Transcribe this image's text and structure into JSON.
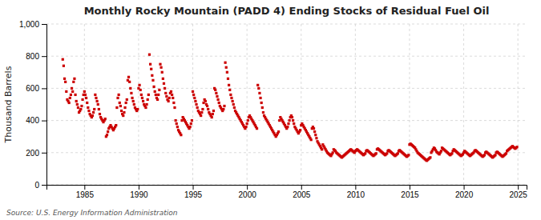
{
  "chart_data": {
    "type": "scatter",
    "title": "Monthly Rocky Mountain (PADD 4) Ending Stocks of Residual Fuel Oil",
    "ylabel": "Thousand Barrels",
    "annotations": [
      "Source: U.S. Energy Information Administration"
    ],
    "color": "#cc0000",
    "marker": "square",
    "grid": true,
    "xlim": [
      1981.5,
      2025.8
    ],
    "xticks": [
      1985,
      1990,
      1995,
      2000,
      2005,
      2010,
      2015,
      2020,
      2025
    ],
    "ylim": [
      0,
      1000
    ],
    "yticks": [
      0,
      200,
      400,
      600,
      800,
      {
        "value": 1000,
        "label": "1,000"
      }
    ],
    "x": [
      1983.0,
      1983.083,
      1983.167,
      1983.25,
      1983.333,
      1983.417,
      1983.5,
      1983.583,
      1983.667,
      1983.75,
      1983.833,
      1983.917,
      1984.0,
      1984.083,
      1984.167,
      1984.25,
      1984.333,
      1984.417,
      1984.5,
      1984.583,
      1984.667,
      1984.75,
      1984.833,
      1984.917,
      1985.0,
      1985.083,
      1985.167,
      1985.25,
      1985.333,
      1985.417,
      1985.5,
      1985.583,
      1985.667,
      1985.75,
      1985.833,
      1985.917,
      1986.0,
      1986.083,
      1986.167,
      1986.25,
      1986.333,
      1986.417,
      1986.5,
      1986.583,
      1986.667,
      1986.75,
      1986.833,
      1986.917,
      1987.0,
      1987.083,
      1987.167,
      1987.25,
      1987.333,
      1987.417,
      1987.5,
      1987.583,
      1987.667,
      1987.75,
      1987.833,
      1987.917,
      1988.0,
      1988.083,
      1988.167,
      1988.25,
      1988.333,
      1988.417,
      1988.5,
      1988.583,
      1988.667,
      1988.75,
      1988.833,
      1988.917,
      1989.0,
      1989.083,
      1989.167,
      1989.25,
      1989.333,
      1989.417,
      1989.5,
      1989.583,
      1989.667,
      1989.75,
      1989.833,
      1989.917,
      1990.0,
      1990.083,
      1990.167,
      1990.25,
      1990.333,
      1990.417,
      1990.5,
      1990.583,
      1990.667,
      1990.75,
      1990.833,
      1990.917,
      1991.0,
      1991.083,
      1991.167,
      1991.25,
      1991.333,
      1991.417,
      1991.5,
      1991.583,
      1991.667,
      1991.75,
      1991.833,
      1991.917,
      1992.0,
      1992.083,
      1992.167,
      1992.25,
      1992.333,
      1992.417,
      1992.5,
      1992.583,
      1992.667,
      1992.75,
      1992.833,
      1992.917,
      1993.0,
      1993.083,
      1993.167,
      1993.25,
      1993.333,
      1993.417,
      1993.5,
      1993.583,
      1993.667,
      1993.75,
      1993.833,
      1993.917,
      1994.0,
      1994.083,
      1994.167,
      1994.25,
      1994.333,
      1994.417,
      1994.5,
      1994.583,
      1994.667,
      1994.75,
      1994.833,
      1994.917,
      1995.0,
      1995.083,
      1995.167,
      1995.25,
      1995.333,
      1995.417,
      1995.5,
      1995.583,
      1995.667,
      1995.75,
      1995.833,
      1995.917,
      1996.0,
      1996.083,
      1996.167,
      1996.25,
      1996.333,
      1996.417,
      1996.5,
      1996.583,
      1996.667,
      1996.75,
      1996.833,
      1996.917,
      1997.0,
      1997.083,
      1997.167,
      1997.25,
      1997.333,
      1997.417,
      1997.5,
      1997.583,
      1997.667,
      1997.75,
      1997.833,
      1997.917,
      1998.0,
      1998.083,
      1998.167,
      1998.25,
      1998.333,
      1998.417,
      1998.5,
      1998.583,
      1998.667,
      1998.75,
      1998.833,
      1998.917,
      1999.0,
      1999.083,
      1999.167,
      1999.25,
      1999.333,
      1999.417,
      1999.5,
      1999.583,
      1999.667,
      1999.75,
      1999.833,
      1999.917,
      2000.0,
      2000.083,
      2000.167,
      2000.25,
      2000.333,
      2000.417,
      2000.5,
      2000.583,
      2000.667,
      2000.75,
      2000.833,
      2000.917,
      2001.0,
      2001.083,
      2001.167,
      2001.25,
      2001.333,
      2001.417,
      2001.5,
      2001.583,
      2001.667,
      2001.75,
      2001.833,
      2001.917,
      2002.0,
      2002.083,
      2002.167,
      2002.25,
      2002.333,
      2002.417,
      2002.5,
      2002.583,
      2002.667,
      2002.75,
      2002.833,
      2002.917,
      2003.0,
      2003.083,
      2003.167,
      2003.25,
      2003.333,
      2003.417,
      2003.5,
      2003.583,
      2003.667,
      2003.75,
      2003.833,
      2003.917,
      2004.0,
      2004.083,
      2004.167,
      2004.25,
      2004.333,
      2004.417,
      2004.5,
      2004.583,
      2004.667,
      2004.75,
      2004.833,
      2004.917,
      2005.0,
      2005.083,
      2005.167,
      2005.25,
      2005.333,
      2005.417,
      2005.5,
      2005.583,
      2005.667,
      2005.75,
      2005.833,
      2005.917,
      2006.0,
      2006.083,
      2006.167,
      2006.25,
      2006.333,
      2006.417,
      2006.5,
      2006.583,
      2006.667,
      2006.75,
      2006.833,
      2006.917,
      2007.0,
      2007.083,
      2007.167,
      2007.25,
      2007.333,
      2007.417,
      2007.5,
      2007.583,
      2007.667,
      2007.75,
      2007.833,
      2007.917,
      2008.0,
      2008.083,
      2008.167,
      2008.25,
      2008.333,
      2008.417,
      2008.5,
      2008.583,
      2008.667,
      2008.75,
      2008.833,
      2008.917,
      2009.0,
      2009.083,
      2009.167,
      2009.25,
      2009.333,
      2009.417,
      2009.5,
      2009.583,
      2009.667,
      2009.75,
      2009.833,
      2009.917,
      2010.0,
      2010.083,
      2010.167,
      2010.25,
      2010.333,
      2010.417,
      2010.5,
      2010.583,
      2010.667,
      2010.75,
      2010.833,
      2010.917,
      2011.0,
      2011.083,
      2011.167,
      2011.25,
      2011.333,
      2011.417,
      2011.5,
      2011.583,
      2011.667,
      2011.75,
      2011.833,
      2011.917,
      2012.0,
      2012.083,
      2012.167,
      2012.25,
      2012.333,
      2012.417,
      2012.5,
      2012.583,
      2012.667,
      2012.75,
      2012.833,
      2012.917,
      2013.0,
      2013.083,
      2013.167,
      2013.25,
      2013.333,
      2013.417,
      2013.5,
      2013.583,
      2013.667,
      2013.75,
      2013.833,
      2013.917,
      2014.0,
      2014.083,
      2014.167,
      2014.25,
      2014.333,
      2014.417,
      2014.5,
      2014.583,
      2014.667,
      2014.75,
      2014.833,
      2014.917,
      2015.0,
      2015.083,
      2015.167,
      2015.25,
      2015.333,
      2015.417,
      2015.5,
      2015.583,
      2015.667,
      2015.75,
      2015.833,
      2015.917,
      2016.0,
      2016.083,
      2016.167,
      2016.25,
      2016.333,
      2016.417,
      2016.5,
      2016.583,
      2016.667,
      2016.75,
      2016.833,
      2016.917,
      2017.0,
      2017.083,
      2017.167,
      2017.25,
      2017.333,
      2017.417,
      2017.5,
      2017.583,
      2017.667,
      2017.75,
      2017.833,
      2017.917,
      2018.0,
      2018.083,
      2018.167,
      2018.25,
      2018.333,
      2018.417,
      2018.5,
      2018.583,
      2018.667,
      2018.75,
      2018.833,
      2018.917,
      2019.0,
      2019.083,
      2019.167,
      2019.25,
      2019.333,
      2019.417,
      2019.5,
      2019.583,
      2019.667,
      2019.75,
      2019.833,
      2019.917,
      2020.0,
      2020.083,
      2020.167,
      2020.25,
      2020.333,
      2020.417,
      2020.5,
      2020.583,
      2020.667,
      2020.75,
      2020.833,
      2020.917,
      2021.0,
      2021.083,
      2021.167,
      2021.25,
      2021.333,
      2021.417,
      2021.5,
      2021.583,
      2021.667,
      2021.75,
      2021.833,
      2021.917,
      2022.0,
      2022.083,
      2022.167,
      2022.25,
      2022.333,
      2022.417,
      2022.5,
      2022.583,
      2022.667,
      2022.75,
      2022.833,
      2022.917,
      2023.0,
      2023.083,
      2023.167,
      2023.25,
      2023.333,
      2023.417,
      2023.5,
      2023.583,
      2023.667,
      2023.75,
      2023.833,
      2023.917,
      2024.0,
      2024.083,
      2024.167,
      2024.25,
      2024.333,
      2024.417,
      2024.5,
      2024.583,
      2024.667,
      2024.75,
      2024.833,
      2024.917
    ],
    "values": [
      780,
      740,
      660,
      640,
      580,
      530,
      520,
      510,
      540,
      560,
      600,
      580,
      640,
      660,
      560,
      520,
      500,
      480,
      450,
      460,
      470,
      490,
      530,
      560,
      580,
      560,
      540,
      510,
      480,
      460,
      440,
      430,
      420,
      430,
      450,
      470,
      560,
      540,
      520,
      500,
      470,
      440,
      420,
      410,
      400,
      390,
      400,
      410,
      300,
      310,
      330,
      350,
      360,
      370,
      360,
      350,
      340,
      350,
      360,
      370,
      480,
      540,
      560,
      510,
      490,
      460,
      440,
      430,
      450,
      480,
      510,
      530,
      650,
      670,
      640,
      600,
      570,
      540,
      520,
      500,
      480,
      470,
      460,
      470,
      600,
      620,
      590,
      560,
      540,
      520,
      500,
      490,
      480,
      500,
      530,
      560,
      810,
      750,
      720,
      680,
      650,
      610,
      580,
      560,
      540,
      530,
      560,
      590,
      750,
      730,
      700,
      660,
      630,
      600,
      570,
      550,
      530,
      520,
      540,
      570,
      580,
      560,
      540,
      510,
      480,
      400,
      380,
      360,
      340,
      330,
      320,
      310,
      400,
      420,
      410,
      400,
      390,
      380,
      370,
      360,
      350,
      360,
      380,
      400,
      580,
      560,
      540,
      520,
      500,
      480,
      460,
      450,
      440,
      430,
      450,
      470,
      510,
      530,
      520,
      500,
      490,
      470,
      450,
      440,
      430,
      420,
      440,
      460,
      600,
      590,
      570,
      550,
      530,
      510,
      490,
      480,
      470,
      460,
      470,
      490,
      760,
      730,
      700,
      660,
      620,
      590,
      560,
      540,
      520,
      500,
      480,
      460,
      450,
      440,
      430,
      420,
      410,
      400,
      390,
      380,
      370,
      360,
      350,
      360,
      380,
      400,
      420,
      430,
      420,
      410,
      400,
      390,
      380,
      370,
      360,
      350,
      620,
      600,
      570,
      540,
      510,
      480,
      450,
      430,
      420,
      410,
      400,
      390,
      380,
      370,
      360,
      350,
      340,
      330,
      320,
      310,
      300,
      310,
      320,
      330,
      400,
      420,
      410,
      400,
      390,
      380,
      370,
      360,
      350,
      360,
      380,
      400,
      420,
      430,
      420,
      400,
      380,
      360,
      350,
      340,
      330,
      320,
      330,
      340,
      370,
      380,
      370,
      360,
      350,
      340,
      330,
      320,
      310,
      300,
      290,
      280,
      350,
      360,
      350,
      330,
      310,
      290,
      270,
      260,
      250,
      240,
      230,
      220,
      250,
      240,
      230,
      220,
      210,
      200,
      195,
      190,
      185,
      180,
      190,
      200,
      220,
      215,
      210,
      200,
      195,
      190,
      185,
      180,
      175,
      170,
      175,
      180,
      185,
      190,
      195,
      200,
      205,
      210,
      215,
      220,
      215,
      210,
      205,
      200,
      210,
      215,
      220,
      215,
      210,
      205,
      200,
      195,
      190,
      185,
      190,
      195,
      210,
      215,
      210,
      205,
      200,
      195,
      190,
      185,
      180,
      185,
      190,
      195,
      220,
      225,
      220,
      215,
      210,
      205,
      200,
      195,
      190,
      185,
      190,
      195,
      210,
      215,
      210,
      205,
      200,
      195,
      190,
      185,
      180,
      185,
      190,
      195,
      210,
      215,
      210,
      205,
      200,
      195,
      190,
      185,
      180,
      175,
      180,
      185,
      250,
      255,
      250,
      245,
      240,
      235,
      230,
      220,
      210,
      200,
      195,
      190,
      185,
      180,
      175,
      170,
      165,
      160,
      155,
      150,
      155,
      160,
      165,
      170,
      200,
      210,
      220,
      230,
      225,
      215,
      205,
      200,
      195,
      190,
      200,
      210,
      230,
      225,
      220,
      215,
      210,
      205,
      200,
      195,
      190,
      185,
      190,
      195,
      210,
      220,
      215,
      210,
      205,
      200,
      195,
      190,
      185,
      180,
      185,
      190,
      200,
      210,
      205,
      200,
      195,
      190,
      185,
      180,
      185,
      190,
      195,
      200,
      210,
      215,
      210,
      205,
      200,
      195,
      190,
      185,
      180,
      175,
      180,
      185,
      200,
      205,
      200,
      195,
      190,
      185,
      180,
      175,
      170,
      175,
      180,
      185,
      200,
      205,
      200,
      195,
      190,
      185,
      180,
      175,
      180,
      185,
      190,
      195,
      210,
      215,
      220,
      225,
      230,
      235,
      240,
      235,
      230,
      225,
      230,
      235
    ]
  }
}
